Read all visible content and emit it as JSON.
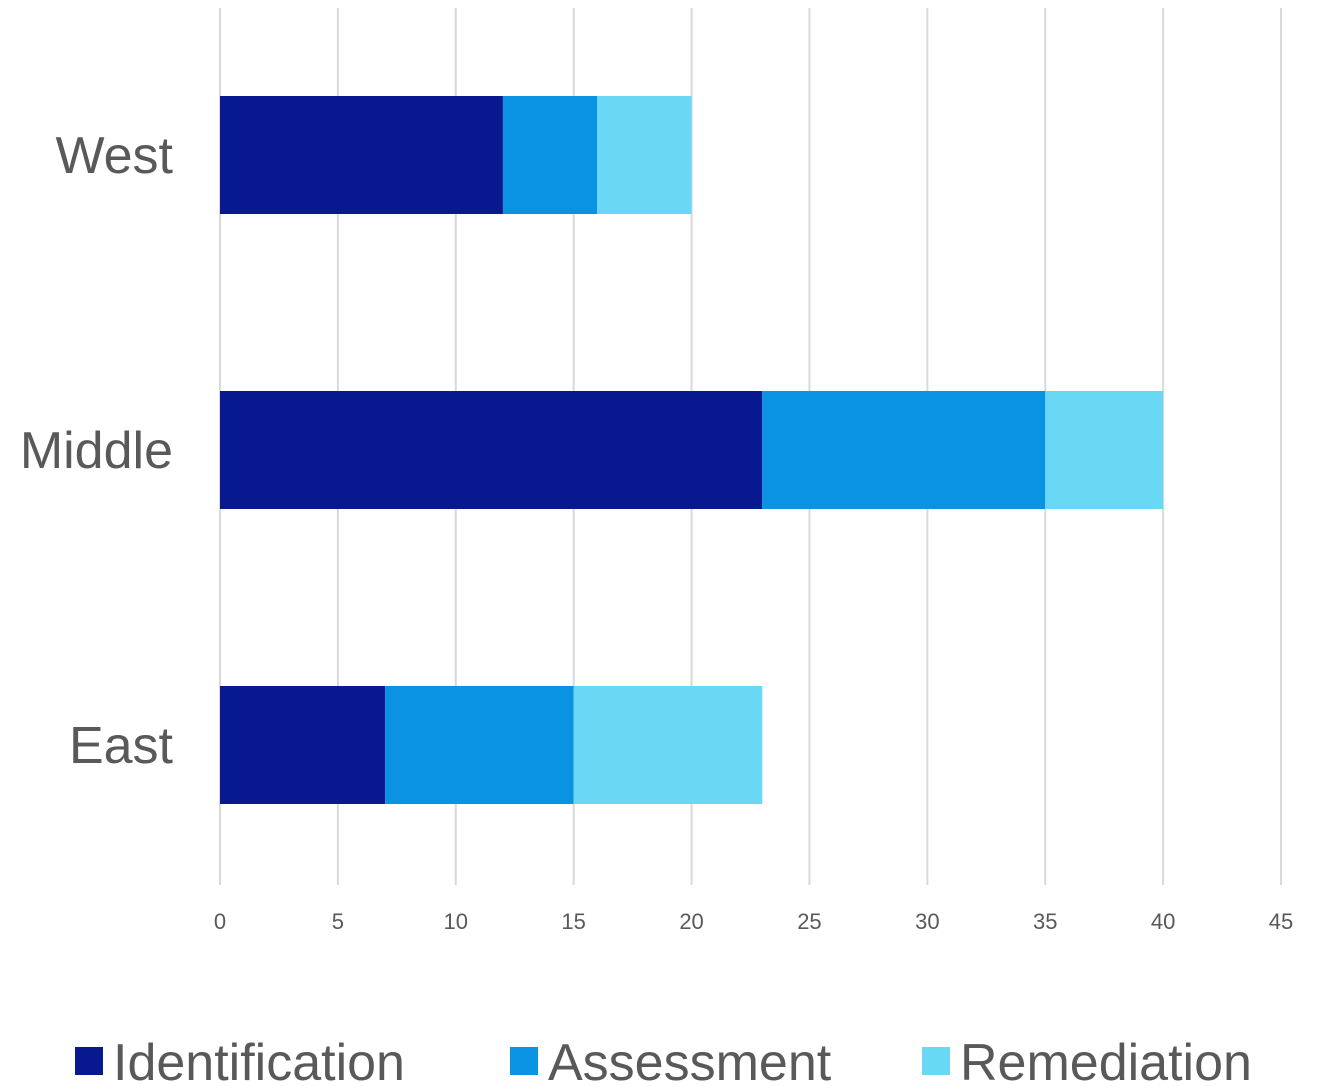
{
  "chart_data": {
    "type": "bar",
    "orientation": "horizontal",
    "stacked": true,
    "categories": [
      "West",
      "Middle",
      "East"
    ],
    "series": [
      {
        "name": "Identification",
        "values": [
          12,
          23,
          7
        ],
        "color": "#08188e"
      },
      {
        "name": "Assessment",
        "values": [
          4,
          12,
          8
        ],
        "color": "#0b93e3"
      },
      {
        "name": "Remediation",
        "values": [
          4,
          5,
          8
        ],
        "color": "#69d8f5"
      }
    ],
    "xlim": [
      0,
      45
    ],
    "x_ticks": [
      "0",
      "5",
      "10",
      "15",
      "20",
      "25",
      "30",
      "35",
      "40",
      "45"
    ],
    "grid": "vertical",
    "legend": "bottom",
    "title": "",
    "xlabel": "",
    "ylabel": ""
  }
}
